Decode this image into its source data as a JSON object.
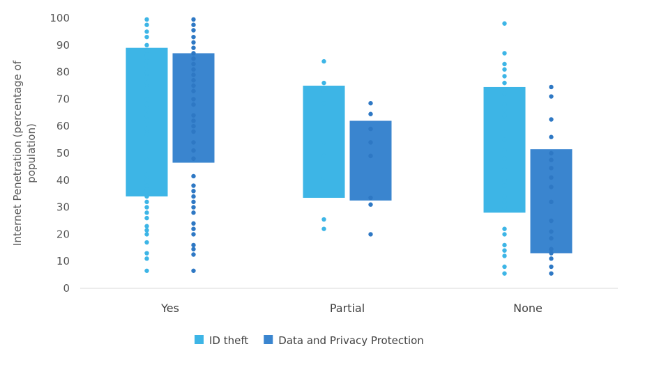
{
  "chart_data": {
    "type": "box",
    "categories": [
      "Yes",
      "Partial",
      "None"
    ],
    "ylabel_lines": [
      "Internet Penetration (percentage of",
      "population)"
    ],
    "ylim": [
      0,
      100
    ],
    "yticks": [
      0,
      10,
      20,
      30,
      40,
      50,
      60,
      70,
      80,
      90,
      100
    ],
    "grid": false,
    "legend_position": "bottom",
    "series": [
      {
        "name": "ID theft",
        "color": "#3DB5E6",
        "boxes": [
          {
            "category": "Yes",
            "q1": 34,
            "q3": 89,
            "points": [
              6.5,
              11,
              13,
              17,
              20,
              21.5,
              23,
              26,
              28,
              30,
              32,
              34,
              36,
              38,
              40,
              42,
              47.5,
              54,
              57,
              59,
              62,
              64,
              66,
              68,
              70,
              74,
              76,
              78,
              80,
              82,
              84,
              86,
              88,
              90,
              93,
              95,
              97.5,
              99.5
            ]
          },
          {
            "category": "Partial",
            "q1": 33.5,
            "q3": 75,
            "points": [
              22,
              25.5,
              41,
              49,
              54,
              68.5,
              73,
              76,
              84
            ]
          },
          {
            "category": "None",
            "q1": 28,
            "q3": 74.5,
            "points": [
              5.5,
              8,
              12,
              14,
              16,
              20,
              22,
              30,
              32,
              34,
              38,
              40,
              44,
              48,
              51,
              55,
              58,
              62,
              64,
              66,
              68,
              72,
              76,
              78.5,
              81,
              83,
              87,
              98
            ]
          }
        ]
      },
      {
        "name": "Data and Privacy Protection",
        "color": "#3A85CF",
        "boxes": [
          {
            "category": "Yes",
            "q1": 46.5,
            "q3": 87,
            "points": [
              6.5,
              12.5,
              14.5,
              16,
              20,
              22,
              24,
              28,
              30,
              32,
              34,
              36,
              38,
              41.5,
              48,
              51,
              54,
              58,
              60,
              62,
              64,
              68,
              70,
              73,
              75,
              77,
              79,
              81,
              83,
              85,
              87,
              89,
              91,
              93,
              95.5,
              97.5,
              99.5
            ]
          },
          {
            "category": "Partial",
            "q1": 32.5,
            "q3": 62,
            "points": [
              20,
              31,
              33.5,
              49,
              54,
              59,
              64.5,
              68.5
            ]
          },
          {
            "category": "None",
            "q1": 13,
            "q3": 51.5,
            "points": [
              5.5,
              8,
              11,
              13,
              14.5,
              18.5,
              21,
              25,
              32,
              37.5,
              41,
              44.5,
              47.5,
              50,
              56,
              62.5,
              71,
              74.5
            ]
          }
        ]
      }
    ]
  }
}
